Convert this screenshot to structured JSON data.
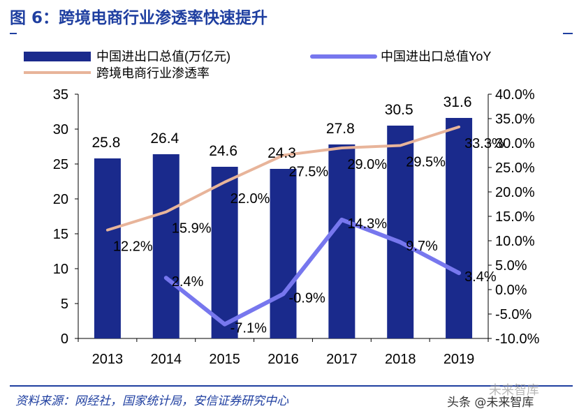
{
  "header": {
    "title": "图 6：跨境电商行业渗透率快速提升"
  },
  "footer": {
    "source": "资料来源：网经社，国家统计局，安信证券研究中心",
    "watermark": "头条 @未来智库",
    "watermark_logo": "未来智库"
  },
  "chart_data": {
    "type": "bar",
    "categories": [
      "2013",
      "2014",
      "2015",
      "2016",
      "2017",
      "2018",
      "2019"
    ],
    "series": [
      {
        "name": "中国进出口总值(万亿元)",
        "kind": "bar",
        "axis": "left",
        "color": "#1a2a8c",
        "values": [
          25.8,
          26.4,
          24.6,
          24.3,
          27.8,
          30.5,
          31.6
        ],
        "labels": [
          "25.8",
          "26.4",
          "24.6",
          "24.3",
          "27.8",
          "30.5",
          "31.6"
        ]
      },
      {
        "name": "中国进出口总值YoY",
        "kind": "line",
        "axis": "right",
        "color": "#7777ee",
        "values": [
          null,
          2.4,
          -7.1,
          -0.9,
          14.3,
          9.7,
          3.4
        ],
        "labels": [
          "",
          "2.4%",
          "-7.1%",
          "-0.9%",
          "14.3%",
          "9.7%",
          "3.4%"
        ]
      },
      {
        "name": "跨境电商行业渗透率",
        "kind": "line",
        "axis": "right",
        "color": "#e8b49a",
        "values": [
          12.2,
          15.9,
          22.0,
          27.5,
          29.0,
          29.5,
          33.3
        ],
        "labels": [
          "12.2%",
          "15.9%",
          "22.0%",
          "27.5%",
          "29.0%",
          "29.5%",
          "33.3%"
        ]
      }
    ],
    "y_left": {
      "min": 0,
      "max": 35,
      "ticks": [
        "0",
        "5",
        "10",
        "15",
        "20",
        "25",
        "30",
        "35"
      ]
    },
    "y_right": {
      "min": -10,
      "max": 40,
      "ticks": [
        "-10.0%",
        "-5.0%",
        "0.0%",
        "5.0%",
        "10.0%",
        "15.0%",
        "20.0%",
        "25.0%",
        "30.0%",
        "35.0%",
        "40.0%"
      ]
    },
    "grid": false,
    "legend": "top-left"
  }
}
